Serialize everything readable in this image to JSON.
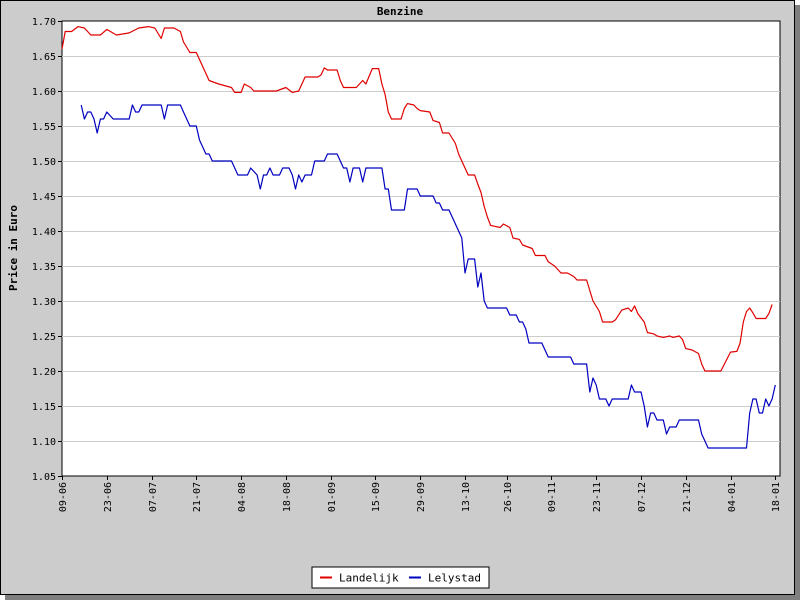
{
  "chart_data": {
    "type": "line",
    "title": "Benzine",
    "xlabel": "",
    "ylabel": "Price in Euro",
    "ylim": [
      1.05,
      1.7
    ],
    "yticks": [
      "1.05",
      "1.10",
      "1.15",
      "1.20",
      "1.25",
      "1.30",
      "1.35",
      "1.40",
      "1.45",
      "1.50",
      "1.55",
      "1.60",
      "1.65",
      "1.70"
    ],
    "xlim": [
      0,
      224
    ],
    "xticks": [
      {
        "x": 0,
        "label": "09-06"
      },
      {
        "x": 14,
        "label": "23-06"
      },
      {
        "x": 28,
        "label": "07-07"
      },
      {
        "x": 42,
        "label": "21-07"
      },
      {
        "x": 56,
        "label": "04-08"
      },
      {
        "x": 70,
        "label": "18-08"
      },
      {
        "x": 84,
        "label": "01-09"
      },
      {
        "x": 98,
        "label": "15-09"
      },
      {
        "x": 112,
        "label": "29-09"
      },
      {
        "x": 126,
        "label": "13-10"
      },
      {
        "x": 139,
        "label": "26-10"
      },
      {
        "x": 153,
        "label": "09-11"
      },
      {
        "x": 167,
        "label": "23-11"
      },
      {
        "x": 181,
        "label": "07-12"
      },
      {
        "x": 195,
        "label": "21-12"
      },
      {
        "x": 209,
        "label": "04-01"
      },
      {
        "x": 223,
        "label": "18-01"
      }
    ],
    "grid": true,
    "legend_position": "bottom-center",
    "series": [
      {
        "name": "Landelijk",
        "color": "#e00000",
        "points": [
          [
            0,
            1.66
          ],
          [
            1,
            1.685
          ],
          [
            3,
            1.685
          ],
          [
            5,
            1.692
          ],
          [
            7,
            1.69
          ],
          [
            9,
            1.68
          ],
          [
            12,
            1.68
          ],
          [
            14,
            1.688
          ],
          [
            17,
            1.68
          ],
          [
            21,
            1.683
          ],
          [
            24,
            1.69
          ],
          [
            27,
            1.692
          ],
          [
            29,
            1.69
          ],
          [
            31,
            1.675
          ],
          [
            32,
            1.69
          ],
          [
            35,
            1.69
          ],
          [
            37,
            1.685
          ],
          [
            38,
            1.67
          ],
          [
            40,
            1.655
          ],
          [
            42,
            1.655
          ],
          [
            44,
            1.635
          ],
          [
            46,
            1.615
          ],
          [
            49,
            1.61
          ],
          [
            53,
            1.605
          ],
          [
            54,
            1.598
          ],
          [
            56,
            1.598
          ],
          [
            57,
            1.61
          ],
          [
            59,
            1.605
          ],
          [
            60,
            1.6
          ],
          [
            63,
            1.6
          ],
          [
            67,
            1.6
          ],
          [
            70,
            1.605
          ],
          [
            72,
            1.598
          ],
          [
            74,
            1.6
          ],
          [
            75,
            1.61
          ],
          [
            76,
            1.62
          ],
          [
            80,
            1.62
          ],
          [
            81,
            1.623
          ],
          [
            82,
            1.633
          ],
          [
            83,
            1.63
          ],
          [
            86,
            1.63
          ],
          [
            87,
            1.615
          ],
          [
            88,
            1.605
          ],
          [
            92,
            1.605
          ],
          [
            94,
            1.615
          ],
          [
            95,
            1.61
          ],
          [
            97,
            1.632
          ],
          [
            99,
            1.632
          ],
          [
            100,
            1.61
          ],
          [
            101,
            1.595
          ],
          [
            102,
            1.57
          ],
          [
            103,
            1.56
          ],
          [
            106,
            1.56
          ],
          [
            107,
            1.575
          ],
          [
            108,
            1.582
          ],
          [
            110,
            1.58
          ],
          [
            111,
            1.575
          ],
          [
            112,
            1.572
          ],
          [
            115,
            1.57
          ],
          [
            116,
            1.558
          ],
          [
            118,
            1.555
          ],
          [
            119,
            1.54
          ],
          [
            121,
            1.54
          ],
          [
            123,
            1.525
          ],
          [
            124,
            1.51
          ],
          [
            126,
            1.49
          ],
          [
            127,
            1.48
          ],
          [
            129,
            1.48
          ],
          [
            130,
            1.467
          ],
          [
            131,
            1.455
          ],
          [
            132,
            1.435
          ],
          [
            133,
            1.42
          ],
          [
            134,
            1.408
          ],
          [
            137,
            1.405
          ],
          [
            138,
            1.41
          ],
          [
            140,
            1.405
          ],
          [
            141,
            1.39
          ],
          [
            143,
            1.388
          ],
          [
            144,
            1.38
          ],
          [
            147,
            1.375
          ],
          [
            148,
            1.365
          ],
          [
            151,
            1.365
          ],
          [
            152,
            1.356
          ],
          [
            154,
            1.35
          ],
          [
            156,
            1.34
          ],
          [
            158,
            1.34
          ],
          [
            160,
            1.335
          ],
          [
            161,
            1.33
          ],
          [
            164,
            1.33
          ],
          [
            166,
            1.3
          ],
          [
            168,
            1.285
          ],
          [
            169,
            1.27
          ],
          [
            172,
            1.27
          ],
          [
            173,
            1.273
          ],
          [
            175,
            1.287
          ],
          [
            177,
            1.29
          ],
          [
            178,
            1.285
          ],
          [
            179,
            1.293
          ],
          [
            180,
            1.282
          ],
          [
            182,
            1.27
          ],
          [
            183,
            1.255
          ],
          [
            185,
            1.253
          ],
          [
            186,
            1.25
          ],
          [
            188,
            1.248
          ],
          [
            190,
            1.25
          ],
          [
            191,
            1.248
          ],
          [
            193,
            1.25
          ],
          [
            194,
            1.245
          ],
          [
            195,
            1.232
          ],
          [
            197,
            1.23
          ],
          [
            199,
            1.225
          ],
          [
            200,
            1.21
          ],
          [
            201,
            1.2
          ],
          [
            204,
            1.2
          ],
          [
            206,
            1.2
          ],
          [
            208,
            1.218
          ],
          [
            209,
            1.227
          ],
          [
            211,
            1.228
          ],
          [
            212,
            1.24
          ],
          [
            213,
            1.27
          ],
          [
            214,
            1.285
          ],
          [
            215,
            1.29
          ],
          [
            216,
            1.283
          ],
          [
            217,
            1.275
          ],
          [
            220,
            1.275
          ],
          [
            221,
            1.282
          ],
          [
            222,
            1.295
          ]
        ]
      },
      {
        "name": "Lelystad",
        "color": "#0000c0",
        "points": [
          [
            6,
            1.58
          ],
          [
            7,
            1.56
          ],
          [
            8,
            1.57
          ],
          [
            9,
            1.57
          ],
          [
            10,
            1.56
          ],
          [
            11,
            1.54
          ],
          [
            12,
            1.56
          ],
          [
            13,
            1.56
          ],
          [
            14,
            1.57
          ],
          [
            15,
            1.565
          ],
          [
            16,
            1.56
          ],
          [
            18,
            1.56
          ],
          [
            21,
            1.56
          ],
          [
            22,
            1.58
          ],
          [
            23,
            1.57
          ],
          [
            24,
            1.57
          ],
          [
            25,
            1.58
          ],
          [
            31,
            1.58
          ],
          [
            32,
            1.56
          ],
          [
            33,
            1.58
          ],
          [
            37,
            1.58
          ],
          [
            38,
            1.57
          ],
          [
            39,
            1.56
          ],
          [
            40,
            1.55
          ],
          [
            42,
            1.55
          ],
          [
            43,
            1.53
          ],
          [
            44,
            1.52
          ],
          [
            45,
            1.51
          ],
          [
            46,
            1.51
          ],
          [
            47,
            1.5
          ],
          [
            53,
            1.5
          ],
          [
            54,
            1.49
          ],
          [
            55,
            1.48
          ],
          [
            58,
            1.48
          ],
          [
            59,
            1.49
          ],
          [
            61,
            1.48
          ],
          [
            62,
            1.46
          ],
          [
            63,
            1.48
          ],
          [
            64,
            1.48
          ],
          [
            65,
            1.49
          ],
          [
            66,
            1.48
          ],
          [
            68,
            1.48
          ],
          [
            69,
            1.49
          ],
          [
            71,
            1.49
          ],
          [
            72,
            1.48
          ],
          [
            73,
            1.46
          ],
          [
            74,
            1.48
          ],
          [
            75,
            1.47
          ],
          [
            76,
            1.48
          ],
          [
            78,
            1.48
          ],
          [
            79,
            1.5
          ],
          [
            82,
            1.5
          ],
          [
            83,
            1.51
          ],
          [
            86,
            1.51
          ],
          [
            87,
            1.5
          ],
          [
            88,
            1.49
          ],
          [
            89,
            1.49
          ],
          [
            90,
            1.47
          ],
          [
            91,
            1.49
          ],
          [
            93,
            1.49
          ],
          [
            94,
            1.47
          ],
          [
            95,
            1.49
          ],
          [
            100,
            1.49
          ],
          [
            101,
            1.46
          ],
          [
            102,
            1.46
          ],
          [
            103,
            1.43
          ],
          [
            107,
            1.43
          ],
          [
            108,
            1.46
          ],
          [
            111,
            1.46
          ],
          [
            112,
            1.45
          ],
          [
            116,
            1.45
          ],
          [
            117,
            1.44
          ],
          [
            118,
            1.44
          ],
          [
            119,
            1.43
          ],
          [
            121,
            1.43
          ],
          [
            122,
            1.42
          ],
          [
            124,
            1.4
          ],
          [
            125,
            1.39
          ],
          [
            126,
            1.34
          ],
          [
            127,
            1.36
          ],
          [
            129,
            1.36
          ],
          [
            130,
            1.32
          ],
          [
            131,
            1.34
          ],
          [
            132,
            1.3
          ],
          [
            133,
            1.29
          ],
          [
            139,
            1.29
          ],
          [
            140,
            1.28
          ],
          [
            142,
            1.28
          ],
          [
            143,
            1.27
          ],
          [
            144,
            1.27
          ],
          [
            145,
            1.26
          ],
          [
            146,
            1.24
          ],
          [
            150,
            1.24
          ],
          [
            151,
            1.23
          ],
          [
            152,
            1.22
          ],
          [
            159,
            1.22
          ],
          [
            160,
            1.21
          ],
          [
            164,
            1.21
          ],
          [
            165,
            1.17
          ],
          [
            166,
            1.19
          ],
          [
            167,
            1.18
          ],
          [
            168,
            1.16
          ],
          [
            170,
            1.16
          ],
          [
            171,
            1.15
          ],
          [
            172,
            1.16
          ],
          [
            177,
            1.16
          ],
          [
            178,
            1.18
          ],
          [
            179,
            1.17
          ],
          [
            181,
            1.17
          ],
          [
            182,
            1.15
          ],
          [
            183,
            1.12
          ],
          [
            184,
            1.14
          ],
          [
            185,
            1.14
          ],
          [
            186,
            1.13
          ],
          [
            188,
            1.13
          ],
          [
            189,
            1.11
          ],
          [
            190,
            1.12
          ],
          [
            192,
            1.12
          ],
          [
            193,
            1.13
          ],
          [
            199,
            1.13
          ],
          [
            200,
            1.11
          ],
          [
            202,
            1.09
          ],
          [
            214,
            1.09
          ],
          [
            215,
            1.14
          ],
          [
            216,
            1.16
          ],
          [
            217,
            1.16
          ],
          [
            218,
            1.14
          ],
          [
            219,
            1.14
          ],
          [
            220,
            1.16
          ],
          [
            221,
            1.15
          ],
          [
            222,
            1.16
          ],
          [
            223,
            1.18
          ]
        ]
      }
    ]
  }
}
